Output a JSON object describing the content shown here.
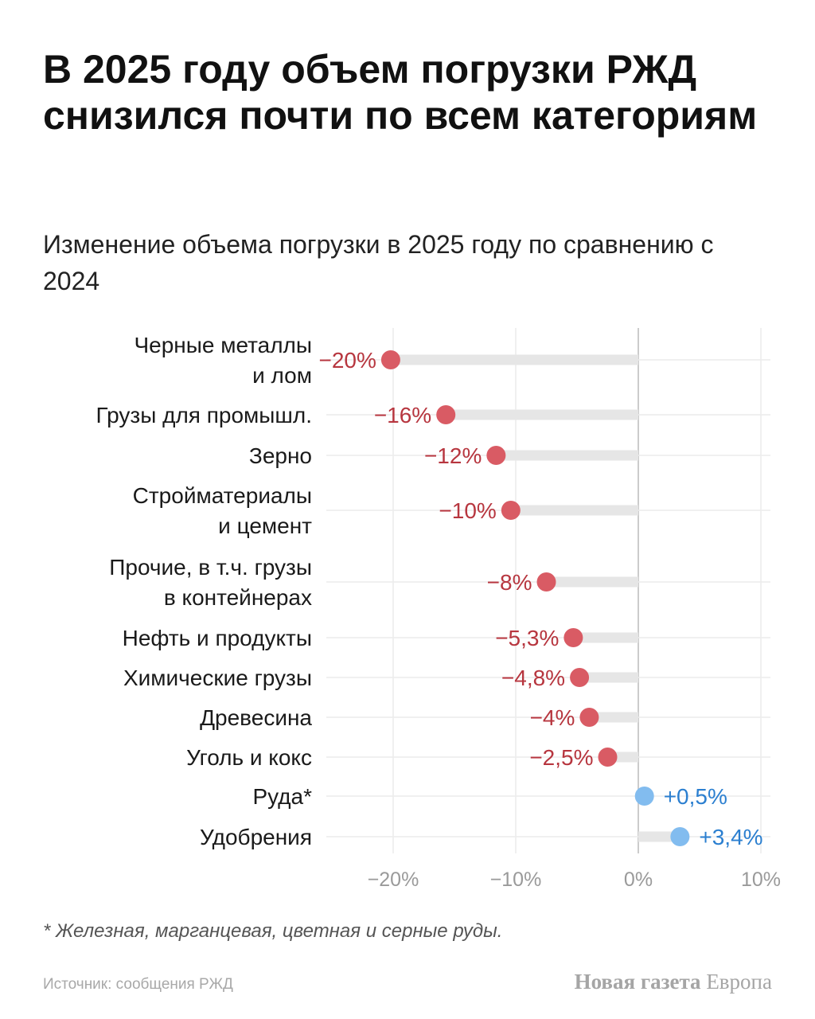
{
  "title": "В 2025 году объем погрузки РЖД снизился почти по всем категориям",
  "subtitle": "Изменение объема погрузки в 2025 году по сравнению с 2024",
  "footnote": "* Железная, марганцевая, цветная и серные руды.",
  "source": "Источник: сообщения РЖД",
  "brand": {
    "bold": "Новая газета",
    "regular": " Европа"
  },
  "colors": {
    "negative": "#d95b64",
    "negative_label": "#b7363f",
    "positive": "#82bcef",
    "positive_label": "#2b7fd0",
    "track": "#e6e6e6",
    "grid": "#ececec",
    "zero": "#cccccc",
    "tick": "#9a9a9a"
  },
  "chart_data": {
    "type": "dot",
    "xlim": [
      -25,
      10
    ],
    "ticks": [
      {
        "value": -20,
        "label": "−20%"
      },
      {
        "value": -10,
        "label": "−10%"
      },
      {
        "value": 0,
        "label": "0%"
      },
      {
        "value": 10,
        "label": "10%"
      }
    ],
    "grid": true,
    "rows": [
      {
        "category": [
          "Черные металлы",
          "и лом"
        ],
        "value": -20.2,
        "label": "−20%"
      },
      {
        "category": [
          "Грузы для промышл."
        ],
        "value": -15.7,
        "label": "−16%"
      },
      {
        "category": [
          "Зерно"
        ],
        "value": -11.6,
        "label": "−12%"
      },
      {
        "category": [
          "Стройматериалы",
          "и цемент"
        ],
        "value": -10.4,
        "label": "−10%"
      },
      {
        "category": [
          "Прочие, в т.ч. грузы",
          "в контейнерах"
        ],
        "value": -7.5,
        "label": "−8%"
      },
      {
        "category": [
          "Нефть и продукты"
        ],
        "value": -5.3,
        "label": "−5,3%"
      },
      {
        "category": [
          "Химические грузы"
        ],
        "value": -4.8,
        "label": "−4,8%"
      },
      {
        "category": [
          "Древесина"
        ],
        "value": -4.0,
        "label": "−4%"
      },
      {
        "category": [
          "Уголь и кокс"
        ],
        "value": -2.5,
        "label": "−2,5%"
      },
      {
        "category": [
          "Руда*"
        ],
        "value": 0.5,
        "label": "+0,5%"
      },
      {
        "category": [
          "Удобрения"
        ],
        "value": 3.4,
        "label": "+3,4%"
      }
    ]
  }
}
